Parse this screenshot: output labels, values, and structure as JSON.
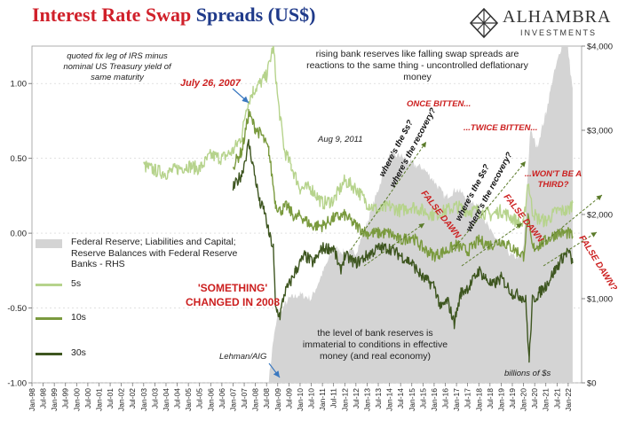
{
  "title_part1": "Interest Rate Swap",
  "title_part2": "Spreads (US$)",
  "logo": {
    "name": "ALHAMBRA",
    "sub": "INVESTMENTS",
    "icon": "diamond-lattice-icon"
  },
  "colors": {
    "s5": "#b6d38c",
    "s10": "#7a9a3e",
    "s30": "#3e5620",
    "reserves": "#d4d4d4",
    "red_text": "#cc1f1f",
    "arrow_green": "#5b7b2a",
    "arrow_blue": "#3a78c0"
  },
  "legend": {
    "reserves": "Federal Reserve; Liabilities and Capital; Reserve Balances with Federal Reserve Banks - RHS",
    "s5": "5s",
    "s10": "10s",
    "s30": "30s"
  },
  "annotations": {
    "definition": "quoted fix leg of IRS minus nominal US Treasury yield of same maturity",
    "rising": "rising bank reserves like falling swap spreads are reactions to the same thing - uncontrolled deflationary money",
    "july": "July 26, 2007",
    "aug": "Aug 9, 2011",
    "once": "ONCE BITTEN...",
    "twice": "...TWICE BITTEN...",
    "wont": "...WON'T BE A THIRD?",
    "something": "'SOMETHING' CHANGED  IN 2008",
    "lehman": "Lehman/AIG",
    "level": "the level of bank reserves is immaterial to conditions in effective money (and real economy)",
    "billions": "billions of $s",
    "recovery": "where's the $s? where's the recovery?",
    "false_dawn": "FALSE DAWN",
    "false_dawn_q": "FALSE DAWN?"
  },
  "chart_data": {
    "type": "line",
    "x_ticks": [
      "Jan-98",
      "Jul-98",
      "Jan-99",
      "Jul-99",
      "Jan-00",
      "Jul-00",
      "Jan-01",
      "Jul-01",
      "Jan-02",
      "Jul-02",
      "Jan-03",
      "Jul-03",
      "Jan-04",
      "Jul-04",
      "Jan-05",
      "Jul-05",
      "Jan-06",
      "Jul-06",
      "Jan-07",
      "Jul-07",
      "Jan-08",
      "Jul-08",
      "Jan-09",
      "Jul-09",
      "Jan-10",
      "Jul-10",
      "Jan-11",
      "Jul-11",
      "Jan-12",
      "Jul-12",
      "Jan-13",
      "Jul-13",
      "Jan-14",
      "Jul-14",
      "Jan-15",
      "Jul-15",
      "Jan-16",
      "Jul-16",
      "Jan-17",
      "Jul-17",
      "Jan-18",
      "Jul-18",
      "Jan-19",
      "Jul-19",
      "Jan-20",
      "Jul-20",
      "Jan-21",
      "Jul-21",
      "Jan-22"
    ],
    "y_left": {
      "range": [
        -1.0,
        1.25
      ],
      "ticks": [
        -1.0,
        -0.5,
        0.0,
        0.5,
        1.0
      ],
      "labels": [
        "-1.00",
        "-0.50",
        "0.00",
        "0.50",
        "1.00"
      ]
    },
    "y_right": {
      "range": [
        0,
        4000
      ],
      "ticks": [
        0,
        1000,
        2000,
        3000,
        4000
      ],
      "labels": [
        "$0",
        "$1,000",
        "$2,000",
        "$3,000",
        "$4,000"
      ]
    },
    "series": [
      {
        "key": "s5",
        "name": "5s",
        "x": [
          2003.0,
          2003.5,
          2004.0,
          2004.5,
          2005.0,
          2005.5,
          2006.0,
          2006.5,
          2007.0,
          2007.4,
          2007.6,
          2007.9,
          2008.2,
          2008.5,
          2008.8,
          2009.0,
          2009.3,
          2009.6,
          2010.0,
          2010.5,
          2011.0,
          2011.5,
          2012.0,
          2012.5,
          2013.0,
          2013.5,
          2014.0,
          2014.5,
          2015.0,
          2015.5,
          2016.0,
          2016.5,
          2017.0,
          2017.5,
          2018.0,
          2018.5,
          2019.0,
          2019.5,
          2020.0,
          2020.2,
          2020.4,
          2020.6,
          2021.0,
          2021.5,
          2022.0,
          2022.2
        ],
        "values": [
          0.45,
          0.42,
          0.4,
          0.43,
          0.45,
          0.43,
          0.52,
          0.5,
          0.55,
          0.65,
          0.85,
          0.95,
          1.0,
          1.05,
          1.25,
          0.9,
          0.55,
          0.45,
          0.3,
          0.3,
          0.2,
          0.22,
          0.35,
          0.3,
          0.2,
          0.15,
          0.18,
          0.15,
          0.18,
          0.15,
          0.12,
          0.15,
          0.18,
          0.15,
          0.15,
          0.12,
          0.15,
          0.1,
          0.05,
          0.35,
          0.15,
          0.1,
          0.08,
          0.15,
          0.15,
          0.2
        ]
      },
      {
        "key": "s10",
        "name": "10s",
        "x": [
          2007.0,
          2007.4,
          2007.7,
          2008.0,
          2008.3,
          2008.6,
          2008.9,
          2009.1,
          2009.4,
          2009.8,
          2010.0,
          2010.5,
          2011.0,
          2011.5,
          2012.0,
          2012.5,
          2013.0,
          2013.5,
          2014.0,
          2014.5,
          2015.0,
          2015.5,
          2016.0,
          2016.5,
          2017.0,
          2017.5,
          2018.0,
          2018.5,
          2019.0,
          2019.5,
          2020.0,
          2020.2,
          2020.4,
          2020.7,
          2021.0,
          2021.5,
          2022.0,
          2022.2
        ],
        "values": [
          0.45,
          0.55,
          0.8,
          0.7,
          0.65,
          0.55,
          0.2,
          0.15,
          0.18,
          0.1,
          0.12,
          0.05,
          0.05,
          0.1,
          0.12,
          0.05,
          0.0,
          0.0,
          0.0,
          -0.05,
          -0.02,
          -0.1,
          -0.15,
          -0.12,
          -0.08,
          -0.12,
          -0.05,
          -0.08,
          -0.05,
          -0.1,
          -0.15,
          0.1,
          -0.1,
          -0.08,
          -0.05,
          0.0,
          0.0,
          -0.02
        ]
      },
      {
        "key": "s30",
        "name": "30s",
        "x": [
          2007.0,
          2007.4,
          2007.7,
          2007.9,
          2008.2,
          2008.4,
          2008.6,
          2008.8,
          2008.9,
          2009.1,
          2009.3,
          2009.5,
          2009.8,
          2010.2,
          2010.6,
          2011.0,
          2011.5,
          2011.8,
          2012.0,
          2012.5,
          2013.0,
          2013.5,
          2014.0,
          2014.5,
          2015.0,
          2015.5,
          2016.0,
          2016.3,
          2016.6,
          2016.9,
          2017.2,
          2017.6,
          2018.0,
          2018.3,
          2018.6,
          2019.0,
          2019.5,
          2019.9,
          2020.1,
          2020.25,
          2020.4,
          2020.7,
          2021.0,
          2021.4,
          2021.8,
          2022.0,
          2022.2
        ],
        "values": [
          0.3,
          0.4,
          0.6,
          0.45,
          0.2,
          0.15,
          0.0,
          -0.1,
          -0.5,
          -0.55,
          -0.4,
          -0.35,
          -0.25,
          -0.15,
          -0.2,
          -0.1,
          -0.1,
          -0.25,
          -0.15,
          -0.2,
          -0.15,
          -0.1,
          -0.1,
          -0.15,
          -0.2,
          -0.3,
          -0.35,
          -0.5,
          -0.45,
          -0.6,
          -0.4,
          -0.35,
          -0.25,
          -0.3,
          -0.35,
          -0.3,
          -0.4,
          -0.42,
          -0.45,
          -0.85,
          -0.45,
          -0.4,
          -0.35,
          -0.25,
          -0.15,
          -0.12,
          -0.2
        ]
      },
      {
        "key": "reserves",
        "name": "Federal Reserve; Liabilities and Capital; Reserve Balances with Federal Reserve Banks - RHS",
        "axis": "right",
        "x": [
          2008.6,
          2008.8,
          2009.0,
          2009.5,
          2010.0,
          2010.5,
          2011.0,
          2011.5,
          2012.0,
          2012.5,
          2013.0,
          2013.5,
          2014.0,
          2014.5,
          2015.0,
          2015.5,
          2016.0,
          2016.5,
          2017.0,
          2017.5,
          2018.0,
          2018.5,
          2019.0,
          2019.5,
          2019.8,
          2020.0,
          2020.3,
          2020.6,
          2021.0,
          2021.3,
          2021.6,
          2021.9,
          2022.1,
          2022.2
        ],
        "values": [
          20,
          500,
          800,
          1000,
          1050,
          1000,
          1300,
          1600,
          1550,
          1550,
          1900,
          2300,
          2700,
          2700,
          2600,
          2550,
          2400,
          2200,
          2300,
          2200,
          2100,
          1800,
          1650,
          1500,
          1500,
          1600,
          3000,
          2800,
          3200,
          3600,
          3900,
          4200,
          3700,
          3500
        ]
      }
    ]
  }
}
